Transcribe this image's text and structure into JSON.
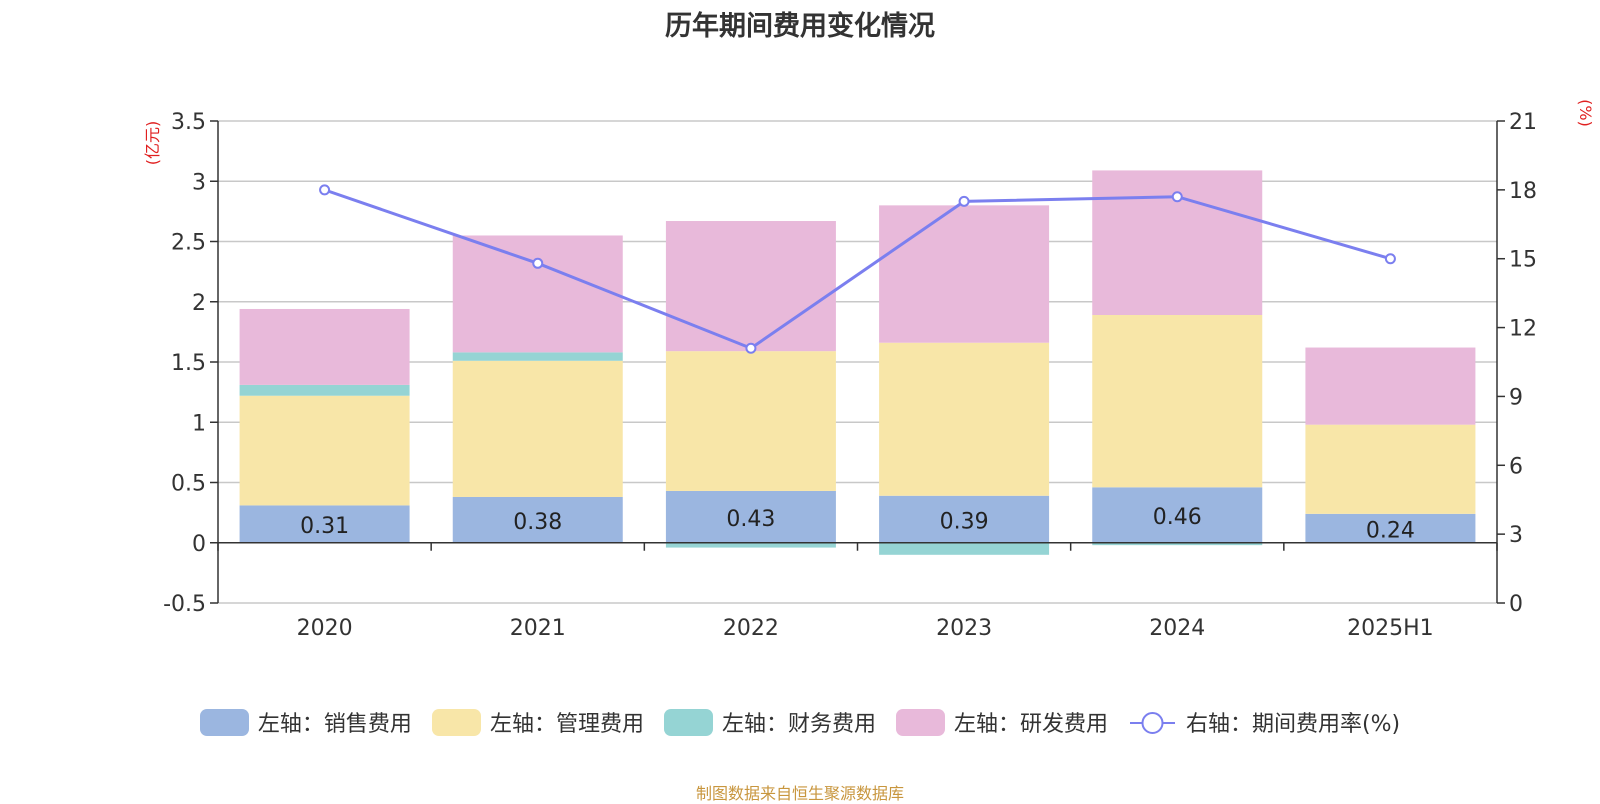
{
  "chart_data": {
    "type": "bar",
    "title": "历年期间费用变化情况",
    "categories": [
      "2020",
      "2021",
      "2022",
      "2023",
      "2024",
      "2025H1"
    ],
    "y_left": {
      "unit_label": "(亿元)",
      "ylim": [
        -0.5,
        3.5
      ],
      "ticks": [
        "-0.5",
        "0",
        "0.5",
        "1",
        "1.5",
        "2",
        "2.5",
        "3",
        "3.5"
      ]
    },
    "y_right": {
      "unit_label": "(%)",
      "ylim": [
        0,
        21
      ],
      "ticks": [
        "0",
        "3",
        "6",
        "9",
        "12",
        "15",
        "18",
        "21"
      ]
    },
    "series": [
      {
        "name": "左轴：销售费用",
        "type": "bar",
        "axis": "left",
        "color": "#9bb6e0",
        "values": [
          0.31,
          0.38,
          0.43,
          0.39,
          0.46,
          0.24
        ],
        "data_labels": [
          "0.31",
          "0.38",
          "0.43",
          "0.39",
          "0.46",
          "0.24"
        ]
      },
      {
        "name": "左轴：管理费用",
        "type": "bar",
        "axis": "left",
        "color": "#f8e6a8",
        "values": [
          0.91,
          1.13,
          1.16,
          1.27,
          1.43,
          0.74
        ]
      },
      {
        "name": "左轴：财务费用",
        "type": "bar",
        "axis": "left",
        "color": "#95d4d4",
        "values": [
          0.09,
          0.07,
          -0.04,
          -0.1,
          -0.02,
          0.0
        ]
      },
      {
        "name": "左轴：研发费用",
        "type": "bar",
        "axis": "left",
        "color": "#e8b9da",
        "values": [
          0.63,
          0.97,
          1.08,
          1.14,
          1.2,
          0.64
        ]
      },
      {
        "name": "右轴：期间费用率(%)",
        "type": "line",
        "axis": "right",
        "color": "#7b7fef",
        "values": [
          18.0,
          14.8,
          11.1,
          17.5,
          17.7,
          15.0
        ]
      }
    ],
    "grid": true,
    "legend_position": "bottom"
  },
  "source_note": "制图数据来自恒生聚源数据库"
}
